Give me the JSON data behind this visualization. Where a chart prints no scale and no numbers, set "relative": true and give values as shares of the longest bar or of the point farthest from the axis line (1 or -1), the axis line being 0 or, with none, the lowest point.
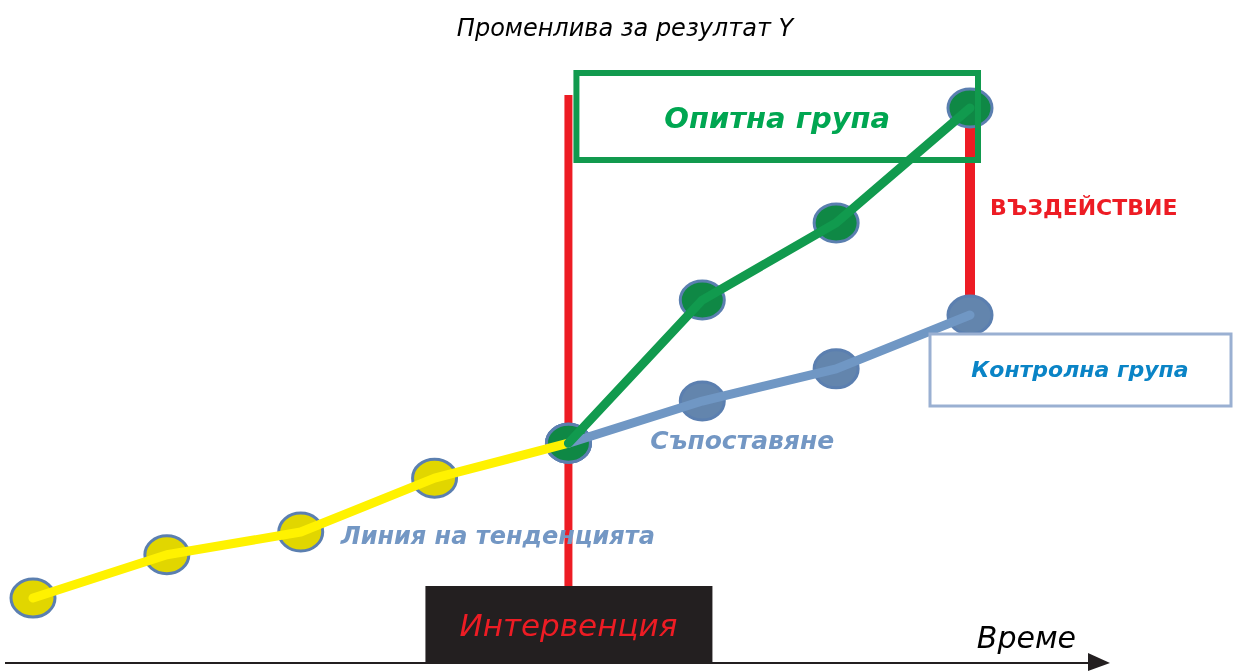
{
  "chart_data": {
    "type": "line",
    "relative": true,
    "xlabel": "Време",
    "ylabel": "Променлива за резултат Y",
    "categories": [
      null,
      null,
      null,
      null,
      null,
      null,
      null,
      null
    ],
    "marker": "circle",
    "line_style": "solid",
    "series": [
      {
        "name": "Линия на тенденцията",
        "color": "#fff200",
        "values": [
          0.117,
          0.195,
          0.236,
          0.333,
          0.396,
          null,
          null,
          null
        ]
      },
      {
        "name": "Опитна група",
        "color": "#119a4e",
        "values": [
          null,
          null,
          null,
          null,
          0.396,
          0.654,
          0.793,
          1
        ]
      },
      {
        "name": "Контролна група",
        "color": "#7097c4",
        "values": [
          null,
          null,
          null,
          null,
          0.396,
          0.472,
          0.53,
          0.627
        ]
      }
    ],
    "annotations": [
      "Съпоставяне",
      "ВЪЗДЕЙСТВИЕ",
      "Интервенция"
    ]
  }
}
